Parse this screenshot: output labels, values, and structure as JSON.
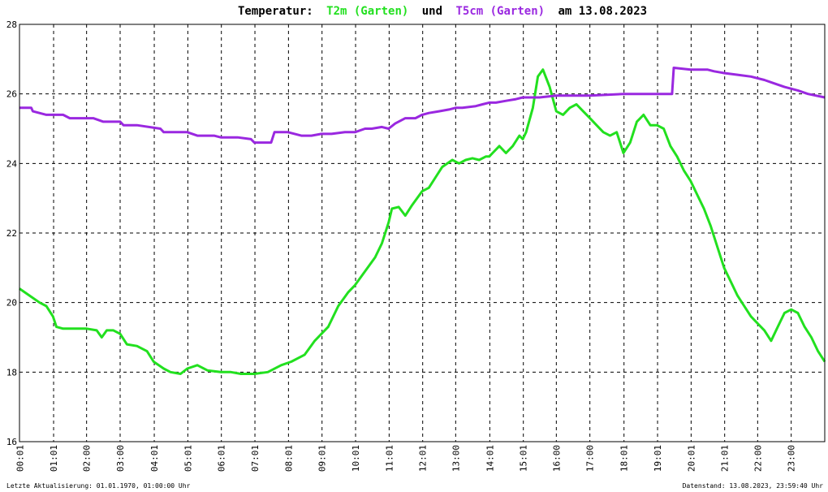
{
  "chart_data": {
    "type": "line",
    "title": {
      "prefix": "Temperatur:",
      "series1": "T2m (Garten)",
      "middle": "und",
      "series2": "T5cm (Garten)",
      "suffix": "am 13.08.2023"
    },
    "xlabel": "",
    "ylabel": "",
    "xlim": [
      0,
      24
    ],
    "ylim": [
      16,
      28
    ],
    "grid": true,
    "y_ticks": [
      16,
      18,
      20,
      22,
      24,
      26,
      28
    ],
    "x_ticks": [
      {
        "hour": 0.017,
        "label": "00:01"
      },
      {
        "hour": 1.017,
        "label": "01:01"
      },
      {
        "hour": 2.0,
        "label": "02:00"
      },
      {
        "hour": 3.0,
        "label": "03:00"
      },
      {
        "hour": 4.017,
        "label": "04:01"
      },
      {
        "hour": 5.017,
        "label": "05:01"
      },
      {
        "hour": 6.017,
        "label": "06:01"
      },
      {
        "hour": 7.017,
        "label": "07:01"
      },
      {
        "hour": 8.017,
        "label": "08:01"
      },
      {
        "hour": 9.017,
        "label": "09:01"
      },
      {
        "hour": 10.017,
        "label": "10:01"
      },
      {
        "hour": 11.017,
        "label": "11:01"
      },
      {
        "hour": 12.017,
        "label": "12:01"
      },
      {
        "hour": 13.0,
        "label": "13:00"
      },
      {
        "hour": 14.017,
        "label": "14:01"
      },
      {
        "hour": 15.017,
        "label": "15:01"
      },
      {
        "hour": 16.0,
        "label": "16:00"
      },
      {
        "hour": 17.0,
        "label": "17:00"
      },
      {
        "hour": 18.017,
        "label": "18:01"
      },
      {
        "hour": 19.017,
        "label": "19:01"
      },
      {
        "hour": 20.017,
        "label": "20:01"
      },
      {
        "hour": 21.017,
        "label": "21:01"
      },
      {
        "hour": 22.0,
        "label": "22:00"
      },
      {
        "hour": 23.0,
        "label": "23:00"
      }
    ],
    "series": [
      {
        "name": "T2m (Garten)",
        "color": "#22e01f",
        "x": [
          0,
          0.3,
          0.6,
          0.8,
          1.0,
          1.1,
          1.3,
          1.6,
          2.0,
          2.3,
          2.45,
          2.6,
          2.8,
          3.0,
          3.2,
          3.5,
          3.8,
          4.0,
          4.3,
          4.5,
          4.8,
          5.0,
          5.3,
          5.6,
          6.0,
          6.3,
          6.6,
          7.0,
          7.4,
          7.8,
          8.1,
          8.5,
          8.8,
          9.0,
          9.2,
          9.5,
          9.8,
          10.0,
          10.3,
          10.6,
          10.8,
          11.0,
          11.1,
          11.3,
          11.5,
          11.7,
          12.0,
          12.2,
          12.4,
          12.6,
          12.9,
          13.1,
          13.3,
          13.5,
          13.7,
          13.9,
          14.0,
          14.1,
          14.3,
          14.5,
          14.7,
          14.9,
          15.0,
          15.1,
          15.3,
          15.45,
          15.6,
          15.8,
          16.0,
          16.2,
          16.4,
          16.6,
          16.8,
          17.0,
          17.2,
          17.4,
          17.6,
          17.8,
          18.0,
          18.2,
          18.4,
          18.6,
          18.8,
          19.0,
          19.2,
          19.4,
          19.6,
          19.8,
          20.0,
          20.2,
          20.4,
          20.6,
          20.8,
          21.0,
          21.2,
          21.4,
          21.6,
          21.8,
          22.0,
          22.2,
          22.4,
          22.6,
          22.8,
          23.0,
          23.2,
          23.4,
          23.6,
          23.8,
          24.0
        ],
        "values": [
          20.4,
          20.2,
          20.0,
          19.9,
          19.6,
          19.3,
          19.25,
          19.25,
          19.25,
          19.2,
          19.0,
          19.2,
          19.2,
          19.1,
          18.8,
          18.75,
          18.6,
          18.3,
          18.1,
          18.0,
          17.95,
          18.1,
          18.2,
          18.05,
          18.0,
          18.0,
          17.95,
          17.95,
          18.0,
          18.2,
          18.3,
          18.5,
          18.9,
          19.1,
          19.3,
          19.9,
          20.3,
          20.5,
          20.9,
          21.3,
          21.7,
          22.3,
          22.7,
          22.75,
          22.5,
          22.8,
          23.2,
          23.3,
          23.6,
          23.9,
          24.1,
          24.0,
          24.1,
          24.15,
          24.1,
          24.2,
          24.2,
          24.3,
          24.5,
          24.3,
          24.5,
          24.8,
          24.7,
          24.9,
          25.6,
          26.5,
          26.7,
          26.2,
          25.5,
          25.4,
          25.6,
          25.7,
          25.5,
          25.3,
          25.1,
          24.9,
          24.8,
          24.9,
          24.3,
          24.6,
          25.2,
          25.4,
          25.1,
          25.1,
          25.0,
          24.5,
          24.2,
          23.8,
          23.5,
          23.1,
          22.7,
          22.2,
          21.6,
          21.0,
          20.6,
          20.2,
          19.9,
          19.6,
          19.4,
          19.2,
          18.9,
          19.3,
          19.7,
          19.8,
          19.7,
          19.3,
          19.0,
          18.6,
          18.3
        ]
      },
      {
        "name": "T5cm (Garten)",
        "color": "#9a28e0",
        "x": [
          0,
          0.35,
          0.4,
          0.8,
          1.3,
          1.5,
          2.2,
          2.5,
          3.0,
          3.1,
          3.5,
          4.2,
          4.3,
          5.0,
          5.3,
          5.8,
          6.0,
          6.5,
          6.9,
          7.0,
          7.5,
          7.6,
          8.0,
          8.4,
          8.7,
          9.0,
          9.3,
          9.7,
          10.0,
          10.3,
          10.5,
          10.8,
          11.0,
          11.2,
          11.5,
          11.8,
          12.0,
          12.2,
          12.5,
          12.8,
          13.0,
          13.2,
          13.6,
          13.8,
          14.0,
          14.2,
          14.5,
          14.8,
          15.0,
          15.5,
          16.0,
          17.0,
          18.0,
          19.0,
          19.45,
          19.5,
          20.0,
          20.5,
          20.7,
          21.0,
          21.4,
          21.8,
          22.2,
          22.5,
          22.8,
          23.2,
          23.5,
          24.0
        ],
        "values": [
          25.6,
          25.6,
          25.5,
          25.4,
          25.4,
          25.3,
          25.3,
          25.2,
          25.2,
          25.1,
          25.1,
          25.0,
          24.9,
          24.9,
          24.8,
          24.8,
          24.75,
          24.75,
          24.7,
          24.6,
          24.6,
          24.9,
          24.9,
          24.8,
          24.8,
          24.85,
          24.85,
          24.9,
          24.9,
          25.0,
          25.0,
          25.05,
          25.0,
          25.15,
          25.3,
          25.3,
          25.4,
          25.45,
          25.5,
          25.55,
          25.6,
          25.6,
          25.65,
          25.7,
          25.75,
          25.75,
          25.8,
          25.85,
          25.9,
          25.9,
          25.95,
          25.95,
          26.0,
          26.0,
          26.0,
          26.75,
          26.7,
          26.7,
          26.65,
          26.6,
          26.55,
          26.5,
          26.4,
          26.3,
          26.2,
          26.1,
          26.0,
          25.9
        ]
      }
    ]
  },
  "footer": {
    "left": "Letzte Aktualisierung: 01.01.1970, 01:00:00 Uhr",
    "right": "Datenstand: 13.08.2023, 23:59:40 Uhr"
  }
}
